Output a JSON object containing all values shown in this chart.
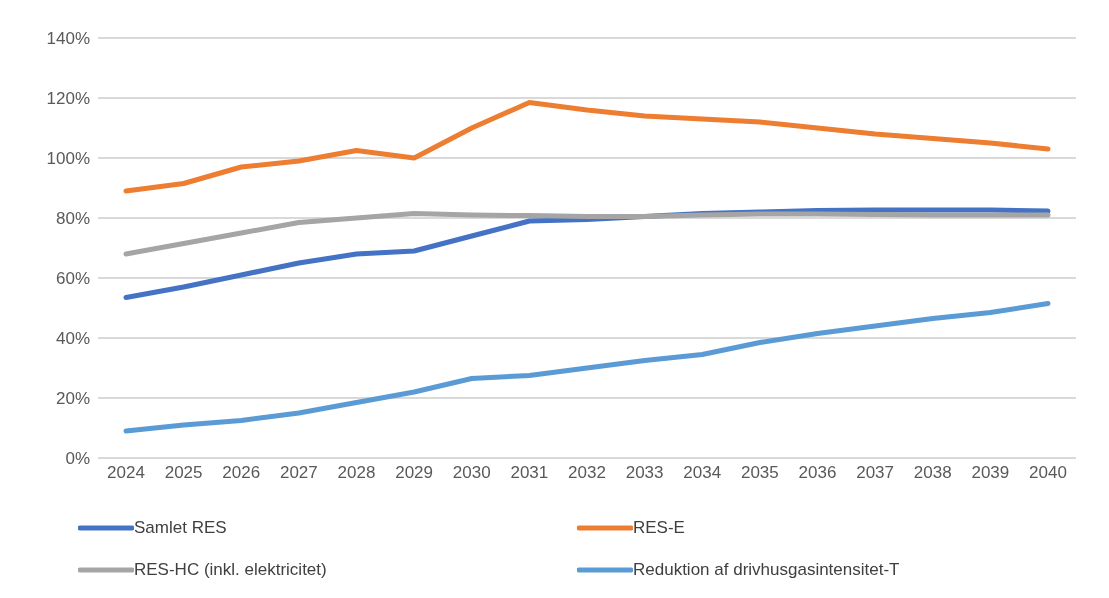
{
  "chart_data": {
    "type": "line",
    "categories": [
      "2024",
      "2025",
      "2026",
      "2027",
      "2028",
      "2029",
      "2030",
      "2031",
      "2032",
      "2033",
      "2034",
      "2035",
      "2036",
      "2037",
      "2038",
      "2039",
      "2040"
    ],
    "series": [
      {
        "name": "Samlet RES",
        "color": "#4472c4",
        "values": [
          53.5,
          57,
          61,
          65,
          68,
          69,
          74,
          79,
          79.5,
          80.5,
          81.5,
          82,
          82.5,
          82.7,
          82.7,
          82.7,
          82.3
        ]
      },
      {
        "name": "RES-E",
        "color": "#ed7d31",
        "values": [
          89,
          91.5,
          97,
          99,
          102.5,
          100,
          110,
          118.5,
          116,
          114,
          113,
          112,
          110,
          108,
          106.5,
          105,
          103
        ]
      },
      {
        "name": "RES-HC (inkl. elektricitet)",
        "color": "#a5a5a5",
        "values": [
          68,
          71.5,
          75,
          78.5,
          80,
          81.5,
          81,
          80.8,
          80.5,
          80.5,
          81,
          81.3,
          81.3,
          81.2,
          81,
          81,
          81
        ]
      },
      {
        "name": "Reduktion af drivhusgasintensitet-T",
        "color": "#5b9bd5",
        "values": [
          9,
          11,
          12.5,
          15,
          18.5,
          22,
          26.5,
          27.5,
          30,
          32.5,
          34.5,
          38.5,
          41.5,
          44,
          46.5,
          48.5,
          51.5
        ]
      }
    ],
    "ylim": [
      0,
      140
    ],
    "yticks": [
      {
        "value": 0,
        "label": "0%"
      },
      {
        "value": 20,
        "label": "20%"
      },
      {
        "value": 40,
        "label": "40%"
      },
      {
        "value": 60,
        "label": "60%"
      },
      {
        "value": 80,
        "label": "80%"
      },
      {
        "value": 100,
        "label": "100%"
      },
      {
        "value": 120,
        "label": "120%"
      },
      {
        "value": 140,
        "label": "140%"
      }
    ],
    "grid": "y",
    "legend": "bottom",
    "marker": "none",
    "line_style": "solid"
  }
}
